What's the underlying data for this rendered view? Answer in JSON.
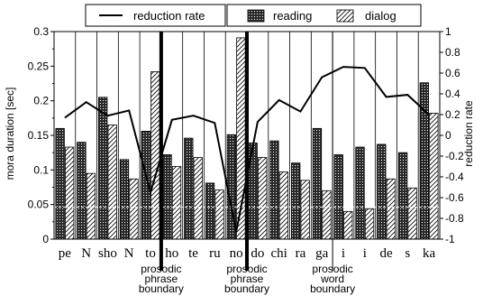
{
  "chart_data": {
    "type": "bar",
    "categories": [
      "pe",
      "N",
      "sho",
      "N",
      "to",
      "ho",
      "te",
      "ru",
      "no",
      "do",
      "chi",
      "ra",
      "ga",
      "i",
      "i",
      "de",
      "s",
      "ka"
    ],
    "series": [
      {
        "name": "reading",
        "values": [
          0.16,
          0.14,
          0.205,
          0.115,
          0.156,
          0.122,
          0.146,
          0.081,
          0.151,
          0.139,
          0.142,
          0.11,
          0.16,
          0.122,
          0.133,
          0.137,
          0.125,
          0.226
        ]
      },
      {
        "name": "dialog",
        "values": [
          0.133,
          0.095,
          0.165,
          0.087,
          0.242,
          0.105,
          0.118,
          0.071,
          0.291,
          0.118,
          0.097,
          0.085,
          0.07,
          0.04,
          0.044,
          0.087,
          0.074,
          0.182
        ]
      }
    ],
    "line_series": {
      "name": "reduction rate",
      "values": [
        0.17,
        0.32,
        0.19,
        0.24,
        -0.55,
        0.15,
        0.19,
        0.12,
        -0.93,
        0.13,
        0.34,
        0.23,
        0.56,
        0.66,
        0.65,
        0.37,
        0.39,
        0.2
      ]
    },
    "ylabel": "mora duration [sec]",
    "ylim": [
      0,
      0.3
    ],
    "yticks": [
      "0",
      "0.05",
      "0.1",
      "0.15",
      "0.2",
      "0.25",
      "0.3"
    ],
    "y2label": "reduction rate",
    "y2lim": [
      -1,
      1
    ],
    "y2ticks": [
      "-1",
      "-0.8",
      "-0.6",
      "-0.4",
      "-0.2",
      "0",
      "0.2",
      "0.4",
      "0.6",
      "0.8",
      "1"
    ],
    "legend": {
      "line": "reduction rate",
      "reading": "reading",
      "dialog": "dialog",
      "placement": "top"
    },
    "annotations": [
      {
        "lines": [
          "prosodic",
          "phrase",
          "boundary"
        ],
        "after_index": 4,
        "thick": true
      },
      {
        "lines": [
          "prosodic",
          "phrase",
          "boundary"
        ],
        "after_index": 8,
        "thick": true
      },
      {
        "lines": [
          "prosodic",
          "word",
          "boundary"
        ],
        "after_index": 12,
        "thick": false
      }
    ],
    "grid": "vertical-category-dividers",
    "colors": {
      "reading": "#1f1f1f",
      "dialog": "#ffffff",
      "line": "#000000"
    }
  }
}
